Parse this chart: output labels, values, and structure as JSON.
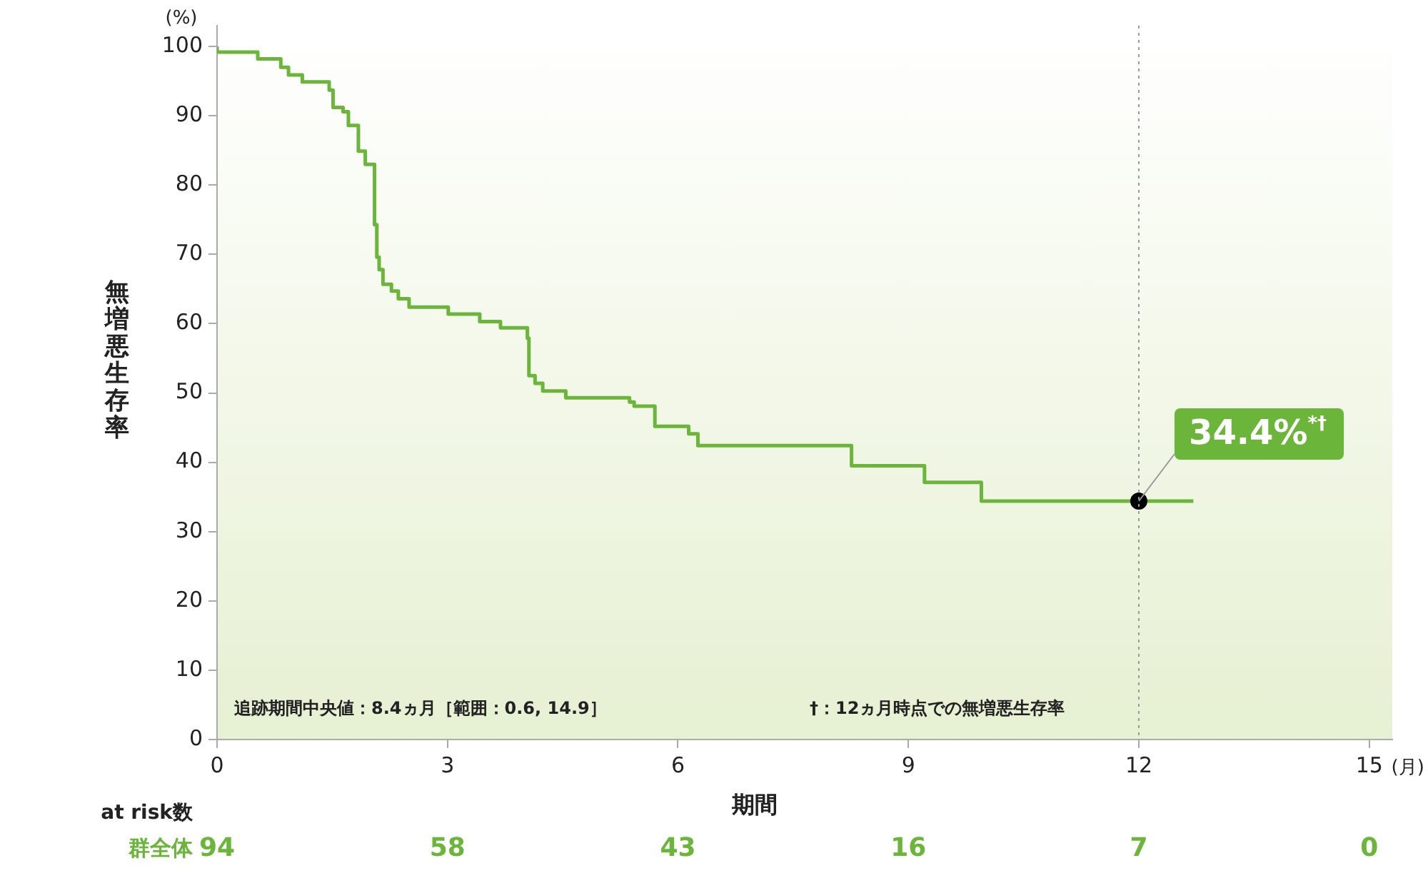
{
  "chart_data": {
    "type": "step",
    "xlabel": "期間",
    "ylabel": "無増悪生存率",
    "xlim": [
      0,
      15.3
    ],
    "ylim": [
      0,
      103
    ],
    "xticks": [
      0,
      3,
      6,
      9,
      12,
      15
    ],
    "yticks": [
      0,
      10,
      20,
      30,
      40,
      50,
      60,
      70,
      80,
      90,
      100
    ],
    "grid": false,
    "legend": false,
    "marker": "none",
    "line_style": "solid",
    "series": [
      {
        "color": "#6ab53a",
        "x": [
          0,
          0.53,
          0.83,
          0.93,
          1.11,
          1.46,
          1.51,
          1.64,
          1.71,
          1.84,
          1.93,
          2.05,
          2.08,
          2.11,
          2.16,
          2.27,
          2.36,
          2.5,
          3.01,
          3.42,
          3.69,
          4.04,
          4.06,
          4.14,
          4.24,
          4.54,
          5.37,
          5.43,
          5.7,
          6.14,
          6.26,
          8.26,
          9.21,
          9.95,
          10.11,
          12.71
        ],
        "values": [
          100,
          99.2,
          98.2,
          97,
          95.9,
          94.9,
          93.7,
          91.2,
          90.6,
          88.6,
          84.9,
          83,
          74.3,
          69.6,
          67.8,
          65.7,
          64.7,
          63.6,
          62.4,
          61.4,
          60.3,
          59.4,
          57.9,
          52.5,
          51.4,
          50.3,
          49.3,
          48.7,
          48.1,
          45.2,
          44.1,
          42.4,
          39.5,
          37.1,
          34.4,
          34.4
        ]
      },
      {
        "type": "scatter",
        "color": "#000000",
        "marker": "circle",
        "x": [
          12
        ],
        "values": [
          34.4
        ]
      }
    ],
    "ref_lines": [
      {
        "axis": "x",
        "value": 12,
        "color": "#999999",
        "line_style": "dotted"
      }
    ],
    "annotations": [
      "(%)",
      "(月)",
      "追跡期間中央値：8.4ヵ月［範囲：0.6, 14.9］",
      "†：12ヵ月時点での無増悪生存率",
      "at risk数",
      "群全体",
      "94",
      "58",
      "43",
      "16",
      "7",
      "0",
      {
        "text": "34.4%$^{*†}$",
        "x": 12,
        "y": 34.4
      }
    ]
  }
}
